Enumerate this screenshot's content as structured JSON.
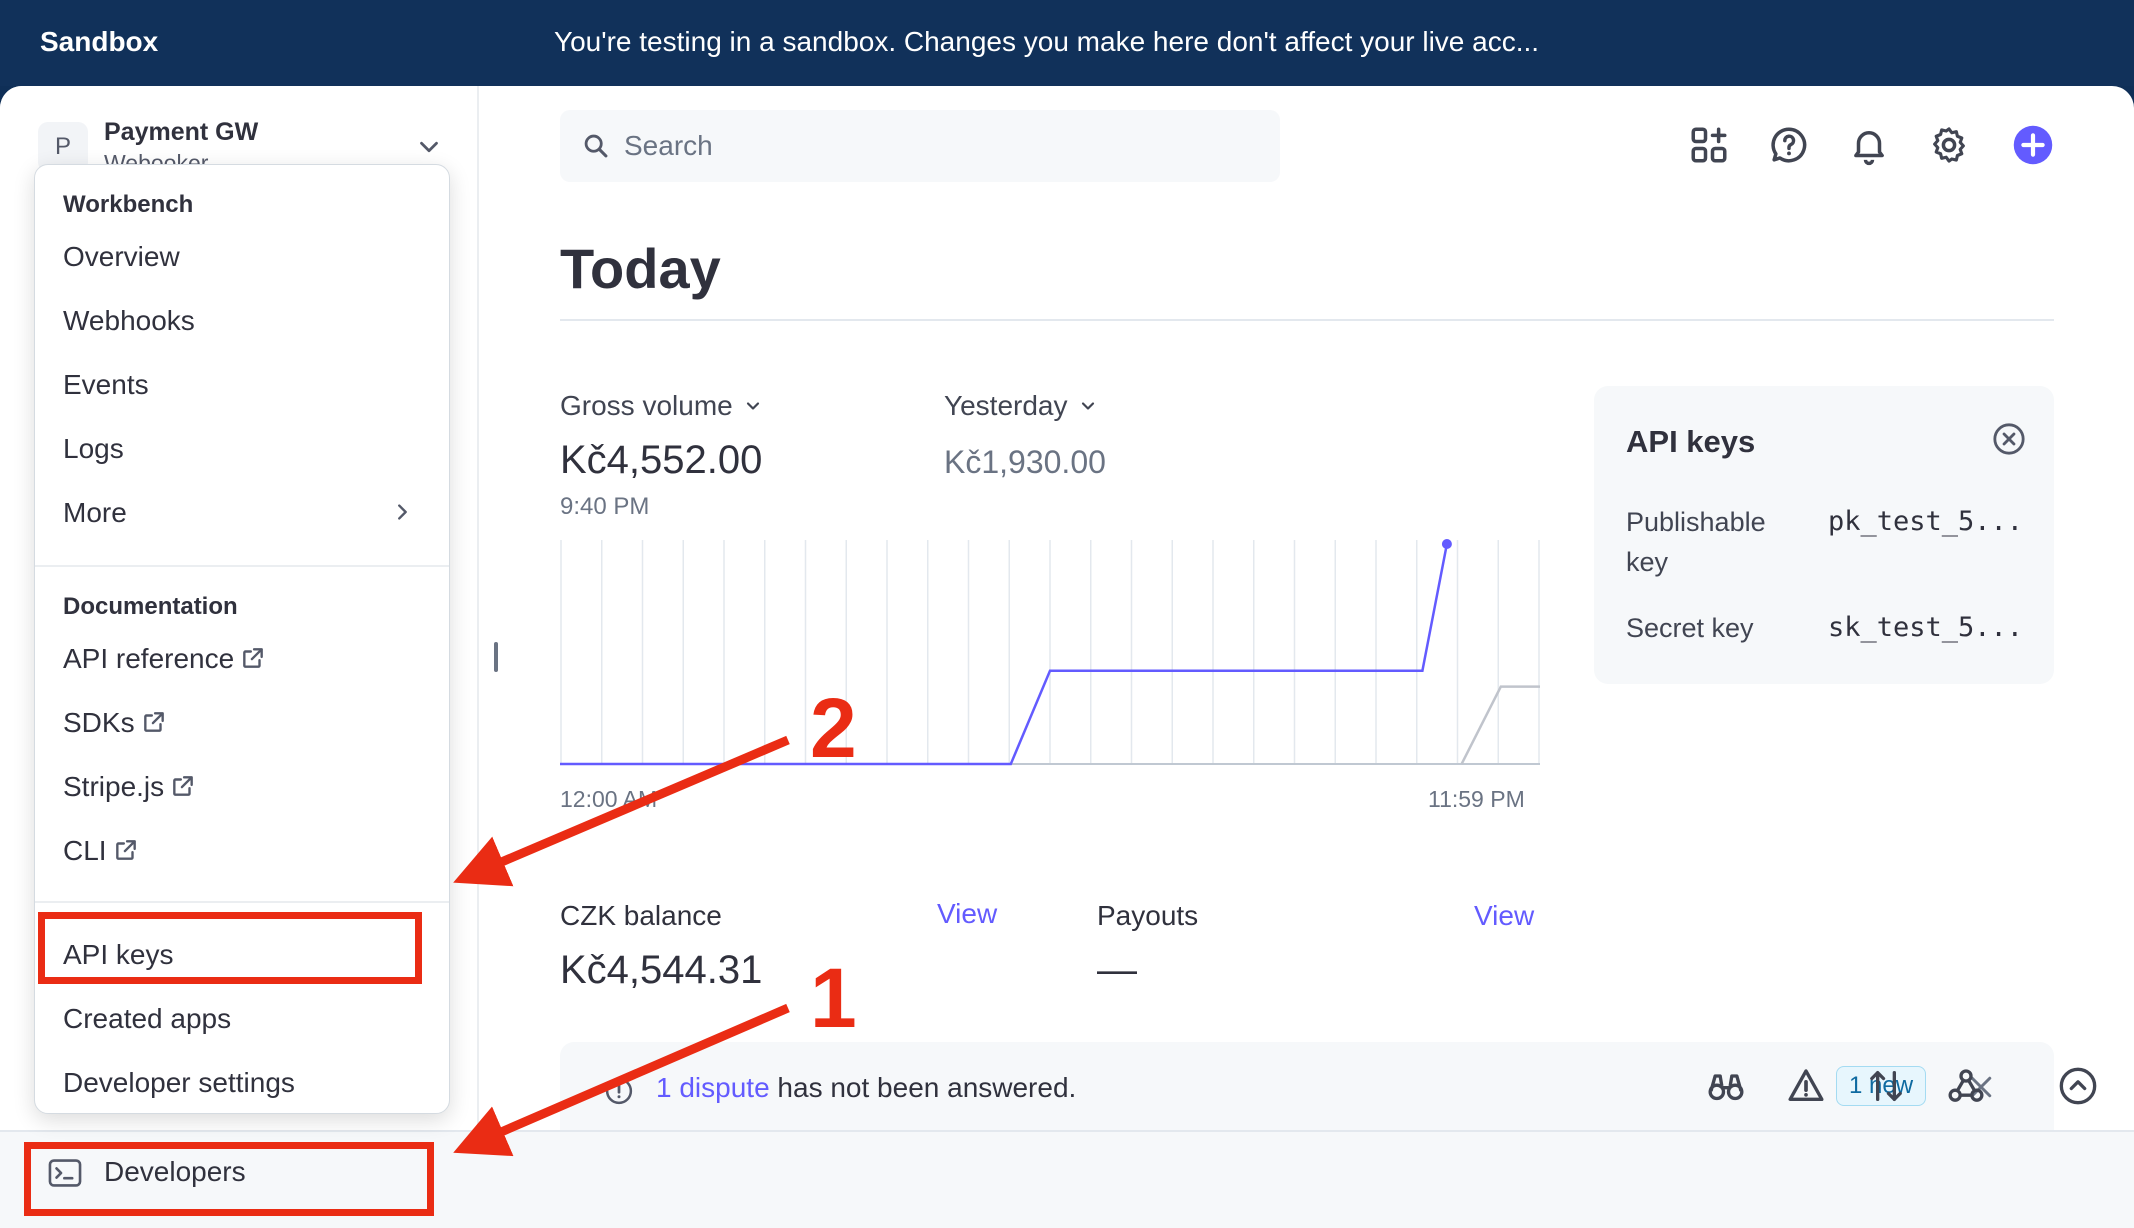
{
  "banner": {
    "brand": "Sandbox",
    "message": "You're testing in a sandbox. Changes you make here don't affect your live acc..."
  },
  "account": {
    "avatar_letter": "P",
    "name": "Payment GW",
    "subtitle": "Webooker"
  },
  "menu": {
    "workbench_heading": "Workbench",
    "workbench_items": [
      "Overview",
      "Webhooks",
      "Events",
      "Logs",
      "More"
    ],
    "documentation_heading": "Documentation",
    "documentation_items": [
      "API reference",
      "SDKs",
      "Stripe.js",
      "CLI"
    ],
    "developer_items": [
      "API keys",
      "Created apps",
      "Developer settings"
    ]
  },
  "bottombar": {
    "developers_label": "Developers",
    "icons": [
      "binoculars-icon",
      "warning-icon",
      "sort-arrows-icon",
      "webhook-icon",
      "chevron-up-circle-icon"
    ]
  },
  "search": {
    "placeholder": "Search"
  },
  "top_icons": [
    "add-widget-icon",
    "help-icon",
    "bell-icon",
    "gear-icon",
    "plus-circle-icon"
  ],
  "page": {
    "title": "Today"
  },
  "metrics": {
    "primary_selector": "Gross volume",
    "primary_value": "Kč4,552.00",
    "primary_time": "9:40 PM",
    "compare_selector": "Yesterday",
    "compare_value": "Kč1,930.00"
  },
  "chart_data": {
    "type": "line",
    "x_start_label": "12:00 AM",
    "x_end_label": "11:59 PM",
    "series": [
      {
        "color": "#635bff",
        "points": [
          [
            0,
            0
          ],
          [
            0.46,
            0
          ],
          [
            0.5,
            1930
          ],
          [
            0.88,
            1930
          ],
          [
            0.905,
            4552
          ]
        ]
      },
      {
        "color": "#c0c4cc",
        "points": [
          [
            0.92,
            0
          ],
          [
            0.96,
            1600
          ],
          [
            1.0,
            1600
          ]
        ]
      }
    ],
    "ylim": [
      0,
      4552
    ],
    "grid": "vertical"
  },
  "api_keys": {
    "heading": "API keys",
    "publishable_label": "Publishable key",
    "publishable_value": "pk_test_5...",
    "secret_label": "Secret key",
    "secret_value": "sk_test_5..."
  },
  "balance": {
    "label": "CZK balance",
    "value": "Kč4,544.31",
    "view_label": "View"
  },
  "payouts": {
    "label": "Payouts",
    "value": "—",
    "view_label": "View"
  },
  "dispute": {
    "link": "1 dispute",
    "text": " has not been answered.",
    "badge": "1 new"
  },
  "annotations": {
    "step1": "1",
    "step2": "2",
    "color": "#ea2c14"
  },
  "colors": {
    "accent": "#635bff",
    "banner": "#11315a"
  }
}
